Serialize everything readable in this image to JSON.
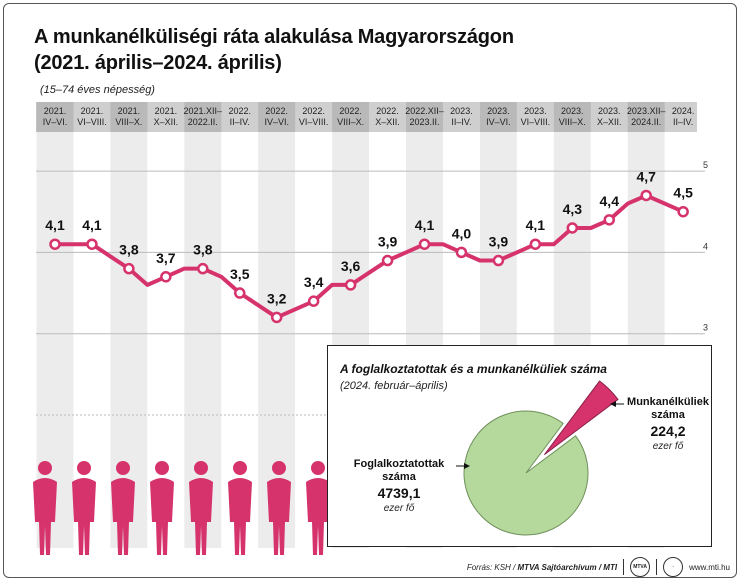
{
  "header": {
    "title_line1": "A munkanélküliségi ráta alakulása Magyarországon",
    "title_line2": "(2021. április–2024. április)",
    "subtitle": "(15–74 éves népesség)"
  },
  "chart_data": [
    {
      "type": "line",
      "categories": [
        "2021.\nIV–VI.",
        "2021.\nVI–VIII.",
        "2021.\nVIII–X.",
        "2021.\nX–XII.",
        "2021.XII–\n2022.II.",
        "2022.\nII–IV.",
        "2022.\nIV–VI.",
        "2022.\nVI–VIII.",
        "2022.\nVIII–X.",
        "2022.\nX–XII.",
        "2022.XII–\n2023.II.",
        "2023.\nII–IV.",
        "2023.\nIV–VI.",
        "2023.\nVI–VIII.",
        "2023.\nVIII–X.",
        "2023.\nX–XII.",
        "2023.XII–\n2024.II.",
        "2024.\nII–IV."
      ],
      "labeled_values": [
        4.1,
        4.1,
        3.8,
        3.7,
        3.8,
        3.5,
        3.2,
        3.4,
        3.6,
        3.9,
        4.1,
        4.0,
        3.9,
        4.1,
        4.3,
        4.4,
        4.7,
        4.5
      ],
      "labels": [
        "4,1",
        "4,1",
        "3,8",
        "3,7",
        "3,8",
        "3,5",
        "3,2",
        "3,4",
        "3,6",
        "3,9",
        "4,1",
        "4,0",
        "3,9",
        "4,1",
        "4,3",
        "4,4",
        "4,7",
        "4,5"
      ],
      "monthly_values": [
        4.1,
        4.1,
        4.1,
        3.95,
        3.8,
        3.6,
        3.7,
        3.8,
        3.8,
        3.7,
        3.5,
        3.35,
        3.2,
        3.3,
        3.4,
        3.6,
        3.6,
        3.75,
        3.9,
        4.0,
        4.1,
        4.1,
        4.0,
        3.9,
        3.9,
        4.0,
        4.1,
        4.1,
        4.3,
        4.3,
        4.4,
        4.6,
        4.7,
        4.6,
        4.5
      ],
      "y_ticks": [
        "3",
        "4",
        "5"
      ],
      "ylim": [
        2.0,
        5.05
      ],
      "line_color": "#d6336c",
      "grid": true
    },
    {
      "type": "pie",
      "title": "A foglalkoztatottak és a munkanélküliek száma",
      "subtitle": "(2024. február–április)",
      "slices": [
        {
          "name": "Foglalkoztatottak száma",
          "value": 4739.1,
          "value_label": "4739,1",
          "unit": "ezer fő",
          "color": "#b5d99c"
        },
        {
          "name": "Munkanélküliek száma",
          "value": 224.2,
          "value_label": "224,2",
          "unit": "ezer fő",
          "color": "#d6336c"
        }
      ]
    }
  ],
  "pie_labels": {
    "employed_line1": "Foglalkoztatottak",
    "employed_line2": "száma",
    "unemployed_line1": "Munkanélküliek",
    "unemployed_line2": "száma"
  },
  "footer": {
    "source_prefix": "Forrás: KSH / ",
    "source_bold": "MTVA Sajtóarchívum / MTI",
    "logo": "MTVA",
    "url": "www.mti.hu"
  },
  "silhouettes": {
    "count": 8,
    "color": "#d6336c"
  }
}
